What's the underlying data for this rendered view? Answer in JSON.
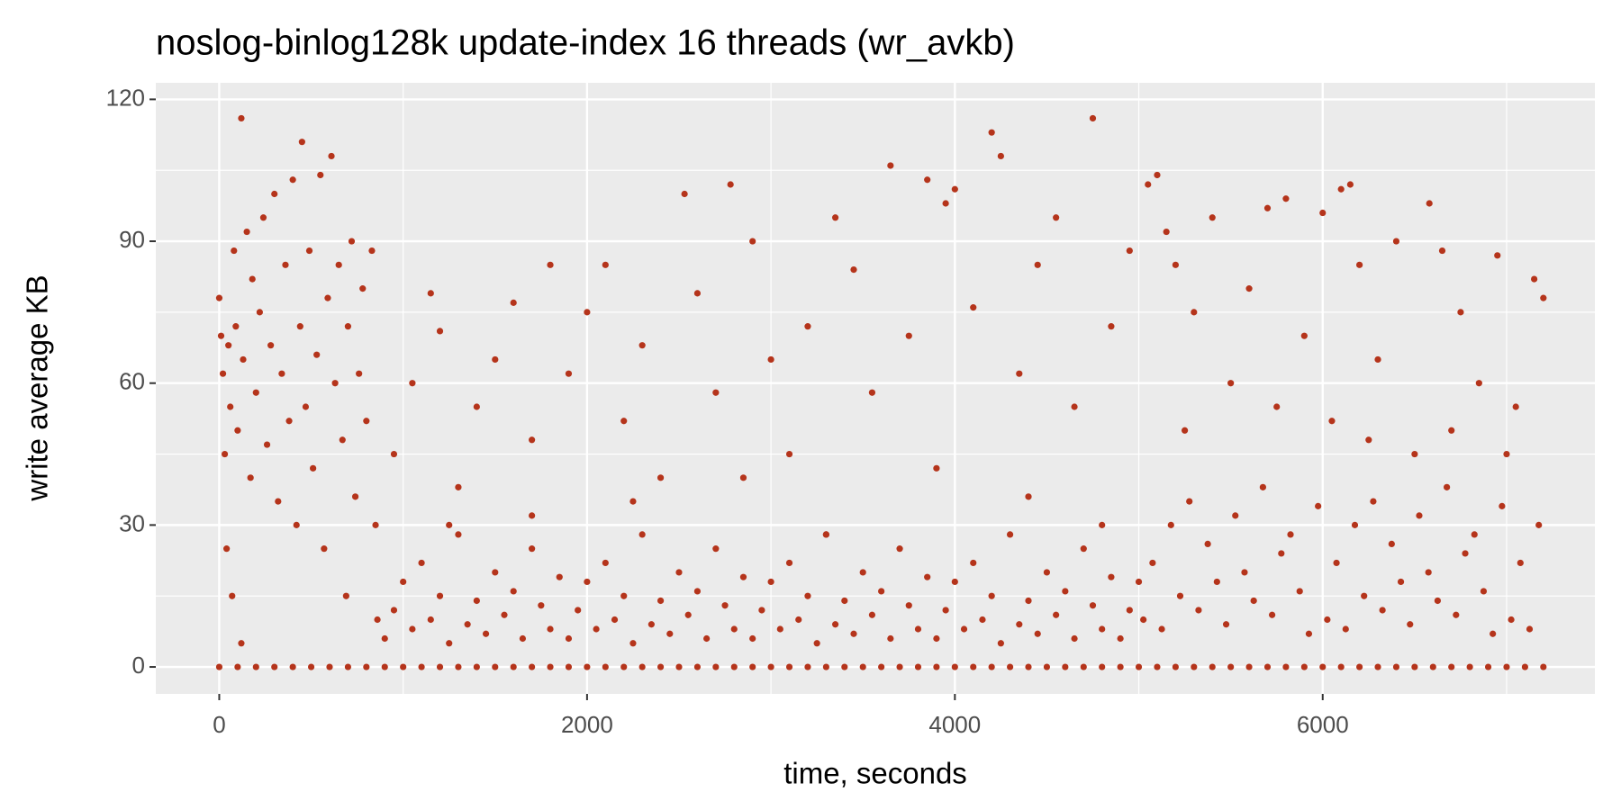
{
  "chart_data": {
    "type": "scatter",
    "title": "noslog-binlog128k update-index 16 threads (wr_avkb)",
    "x_label": "time, seconds",
    "y_label": "write average KB",
    "color": "#b5341b",
    "xlim": [
      -345,
      7480
    ],
    "ylim": [
      -5.7,
      123.5
    ],
    "xticks": [
      0,
      2000,
      4000,
      6000
    ],
    "yticks": [
      0,
      30,
      60,
      90,
      120
    ],
    "x_minor_breaks": [
      1000,
      3000,
      5000,
      7000
    ],
    "y_minor_breaks": [
      15,
      45,
      75,
      105
    ],
    "grid": true,
    "x": [
      0,
      10,
      20,
      30,
      40,
      50,
      60,
      70,
      80,
      90,
      100,
      120,
      120,
      130,
      150,
      170,
      180,
      200,
      220,
      240,
      260,
      280,
      300,
      320,
      340,
      360,
      380,
      400,
      420,
      440,
      450,
      470,
      490,
      510,
      530,
      550,
      570,
      590,
      610,
      630,
      650,
      670,
      690,
      700,
      720,
      740,
      760,
      780,
      800,
      830,
      850,
      860,
      950,
      1050,
      1150,
      1200,
      1300,
      1400,
      1500,
      1600,
      1700,
      1800,
      1900,
      2000,
      2100,
      2200,
      2300,
      2400,
      2530,
      2600,
      2700,
      2780,
      2900,
      3000,
      3100,
      3200,
      3350,
      3450,
      3550,
      3650,
      3750,
      3850,
      3950,
      4000,
      4100,
      4200,
      4250,
      4350,
      4450,
      4550,
      4650,
      4750,
      4850,
      4950,
      1250,
      1700,
      2250,
      2850,
      3300,
      3900,
      4400,
      4800,
      900,
      950,
      1000,
      1050,
      1100,
      1150,
      1200,
      1250,
      1300,
      1350,
      1400,
      1450,
      1500,
      1550,
      1600,
      1650,
      1700,
      1750,
      1800,
      1850,
      1900,
      1950,
      2000,
      2050,
      2100,
      2150,
      2200,
      2250,
      2300,
      2350,
      2400,
      2450,
      2500,
      2550,
      2600,
      2650,
      2700,
      2750,
      2800,
      2850,
      2900,
      2950,
      3000,
      3050,
      3100,
      3150,
      3200,
      3250,
      3300,
      3350,
      3400,
      3450,
      3500,
      3550,
      3600,
      3650,
      3700,
      3750,
      3800,
      3850,
      3900,
      3950,
      4000,
      4050,
      4100,
      4150,
      4200,
      4250,
      4300,
      4350,
      4400,
      4450,
      4500,
      4550,
      4600,
      4650,
      4700,
      4750,
      4800,
      4850,
      4900,
      4950,
      5000,
      5050,
      5100,
      5150,
      5200,
      5300,
      5400,
      5500,
      5600,
      5700,
      5800,
      5900,
      6000,
      6050,
      6100,
      6150,
      6200,
      6300,
      6400,
      6500,
      6580,
      6650,
      6750,
      6850,
      6950,
      7050,
      7150,
      7200,
      5250,
      5750,
      6250,
      6700,
      7000,
      5025,
      5075,
      5125,
      5175,
      5225,
      5275,
      5325,
      5375,
      5425,
      5475,
      5525,
      5575,
      5625,
      5675,
      5725,
      5775,
      5825,
      5875,
      5925,
      5975,
      6025,
      6075,
      6125,
      6175,
      6225,
      6275,
      6325,
      6375,
      6425,
      6475,
      6525,
      6575,
      6625,
      6675,
      6725,
      6775,
      6825,
      6875,
      6925,
      6975,
      7025,
      7075,
      7125,
      7175,
      0,
      100,
      200,
      300,
      400,
      500,
      600,
      700,
      800,
      900,
      1000,
      1100,
      1200,
      1300,
      1400,
      1500,
      1600,
      1700,
      1800,
      1900,
      2000,
      2100,
      2200,
      2300,
      2400,
      2500,
      2600,
      2700,
      2800,
      2900,
      3000,
      3100,
      3200,
      3300,
      3400,
      3500,
      3600,
      3700,
      3800,
      3900,
      4000,
      4100,
      4200,
      4300,
      4400,
      4500,
      4600,
      4700,
      4800,
      4900,
      5000,
      5100,
      5200,
      5300,
      5400,
      5500,
      5600,
      5700,
      5800,
      5900,
      6000,
      6100,
      6200,
      6300,
      6400,
      6500,
      6600,
      6700,
      6800,
      6900,
      7000,
      7100,
      7200
    ],
    "values": [
      78,
      70,
      62,
      45,
      25,
      68,
      55,
      15,
      88,
      72,
      50,
      116,
      5,
      65,
      92,
      40,
      82,
      58,
      75,
      95,
      47,
      68,
      100,
      35,
      62,
      85,
      52,
      103,
      30,
      72,
      111,
      55,
      88,
      42,
      66,
      104,
      25,
      78,
      108,
      60,
      85,
      48,
      15,
      72,
      90,
      36,
      62,
      80,
      52,
      88,
      30,
      10,
      45,
      60,
      79,
      71,
      38,
      55,
      65,
      77,
      48,
      85,
      62,
      75,
      85,
      52,
      68,
      40,
      100,
      79,
      58,
      102,
      90,
      65,
      45,
      72,
      95,
      84,
      58,
      106,
      70,
      103,
      98,
      101,
      76,
      113,
      108,
      62,
      85,
      95,
      55,
      116,
      72,
      88,
      30,
      32,
      35,
      40,
      28,
      42,
      36,
      30,
      6,
      12,
      18,
      8,
      22,
      10,
      15,
      5,
      28,
      9,
      14,
      7,
      20,
      11,
      16,
      6,
      25,
      13,
      8,
      19,
      6,
      12,
      18,
      8,
      22,
      10,
      15,
      5,
      28,
      9,
      14,
      7,
      20,
      11,
      16,
      6,
      25,
      13,
      8,
      19,
      6,
      12,
      18,
      8,
      22,
      10,
      15,
      5,
      28,
      9,
      14,
      7,
      20,
      11,
      16,
      6,
      25,
      13,
      8,
      19,
      6,
      12,
      18,
      8,
      22,
      10,
      15,
      5,
      28,
      9,
      14,
      7,
      20,
      11,
      16,
      6,
      25,
      13,
      8,
      19,
      6,
      12,
      18,
      102,
      104,
      92,
      85,
      75,
      95,
      60,
      80,
      97,
      99,
      70,
      96,
      52,
      101,
      102,
      85,
      65,
      90,
      45,
      98,
      88,
      75,
      60,
      87,
      55,
      82,
      78,
      50,
      55,
      48,
      50,
      45,
      10,
      22,
      8,
      30,
      15,
      35,
      12,
      26,
      18,
      9,
      32,
      20,
      14,
      38,
      11,
      24,
      28,
      16,
      7,
      34,
      10,
      22,
      8,
      30,
      15,
      35,
      12,
      26,
      18,
      9,
      32,
      20,
      14,
      38,
      11,
      24,
      28,
      16,
      7,
      34,
      10,
      22,
      8,
      30,
      0,
      0,
      0,
      0,
      0,
      0,
      0,
      0,
      0,
      0,
      0,
      0,
      0,
      0,
      0,
      0,
      0,
      0,
      0,
      0,
      0,
      0,
      0,
      0,
      0,
      0,
      0,
      0,
      0,
      0,
      0,
      0,
      0,
      0,
      0,
      0,
      0,
      0,
      0,
      0,
      0,
      0,
      0,
      0,
      0,
      0,
      0,
      0,
      0,
      0,
      0,
      0,
      0,
      0,
      0,
      0,
      0,
      0,
      0,
      0,
      0,
      0,
      0,
      0,
      0,
      0,
      0,
      0,
      0,
      0,
      0,
      0,
      0
    ]
  }
}
